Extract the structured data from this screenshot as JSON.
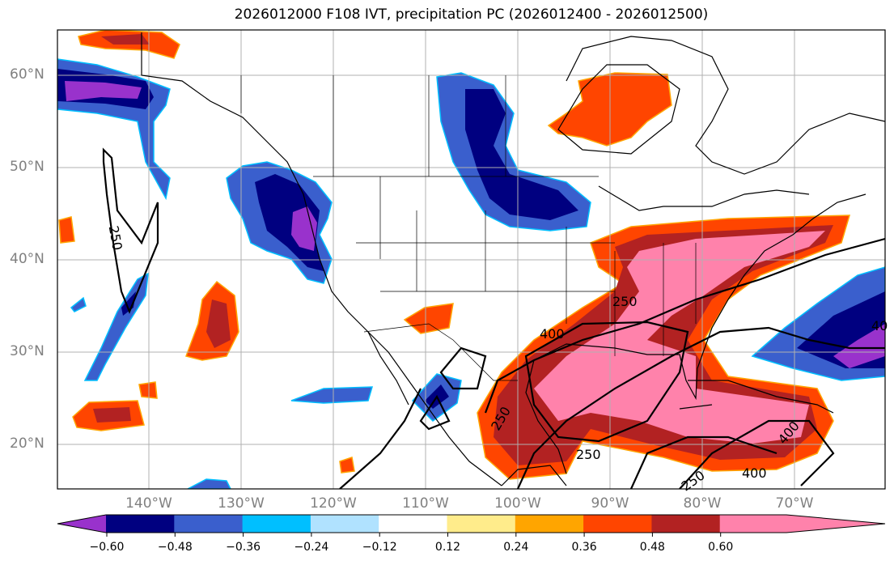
{
  "title": "2026012000 F108 IVT, precipitation PC (2026012400 - 2026012500)",
  "lat_labels": [
    "60°N",
    "50°N",
    "40°N",
    "30°N",
    "20°N"
  ],
  "lon_labels": [
    "140°W",
    "130°W",
    "120°W",
    "110°W",
    "100°W",
    "90°W",
    "80°W",
    "70°W"
  ],
  "contour_labels": [
    "250",
    "250",
    "400",
    "250",
    "250",
    "250",
    "400",
    "400",
    "40"
  ],
  "colorbar": {
    "ticks": [
      "−0.60",
      "−0.48",
      "−0.36",
      "−0.24",
      "−0.12",
      "0.12",
      "0.24",
      "0.36",
      "0.48",
      "0.60"
    ],
    "colors": [
      "#9932CC",
      "#000080",
      "#3A5FCD",
      "#00BFFF",
      "#B0E2FF",
      "#FFFFFF",
      "#FFEC8B",
      "#FFA500",
      "#FF4500",
      "#B22222",
      "#FF82AB"
    ]
  }
}
